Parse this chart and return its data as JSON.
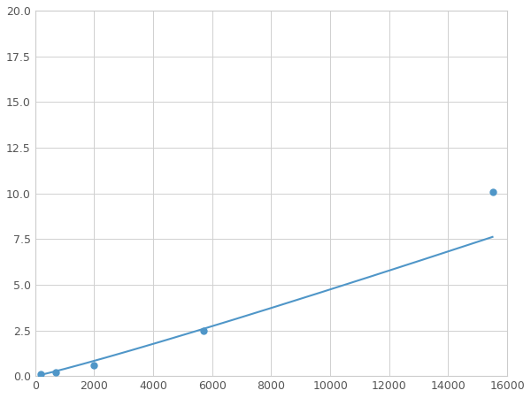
{
  "x": [
    200,
    700,
    2000,
    5700,
    15500
  ],
  "y": [
    0.1,
    0.2,
    0.6,
    2.5,
    10.1
  ],
  "marker_x": [
    200,
    700,
    2000,
    5700,
    15500
  ],
  "marker_y": [
    0.1,
    0.2,
    0.6,
    2.5,
    10.1
  ],
  "line_color": "#4f96c8",
  "marker_color": "#4f96c8",
  "marker_size": 5,
  "xlim": [
    0,
    16000
  ],
  "ylim": [
    0,
    20
  ],
  "xticks": [
    0,
    2000,
    4000,
    6000,
    8000,
    10000,
    12000,
    14000,
    16000
  ],
  "yticks": [
    0.0,
    2.5,
    5.0,
    7.5,
    10.0,
    12.5,
    15.0,
    17.5,
    20.0
  ],
  "grid": true,
  "background_color": "#ffffff",
  "figsize": [
    6.0,
    4.5
  ],
  "dpi": 100
}
